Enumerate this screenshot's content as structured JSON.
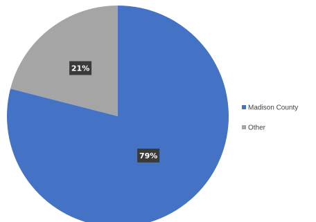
{
  "chart_data": {
    "type": "pie",
    "categories": [
      "Madison County",
      "Other"
    ],
    "values": [
      79,
      21
    ],
    "value_labels": [
      "79%",
      "21%"
    ],
    "colors": [
      "#4472C4",
      "#A5A5A5"
    ],
    "data_label_background": "#3A3A3A",
    "legend_position": "right",
    "start_angle": "12 o'clock",
    "direction": "clockwise"
  }
}
